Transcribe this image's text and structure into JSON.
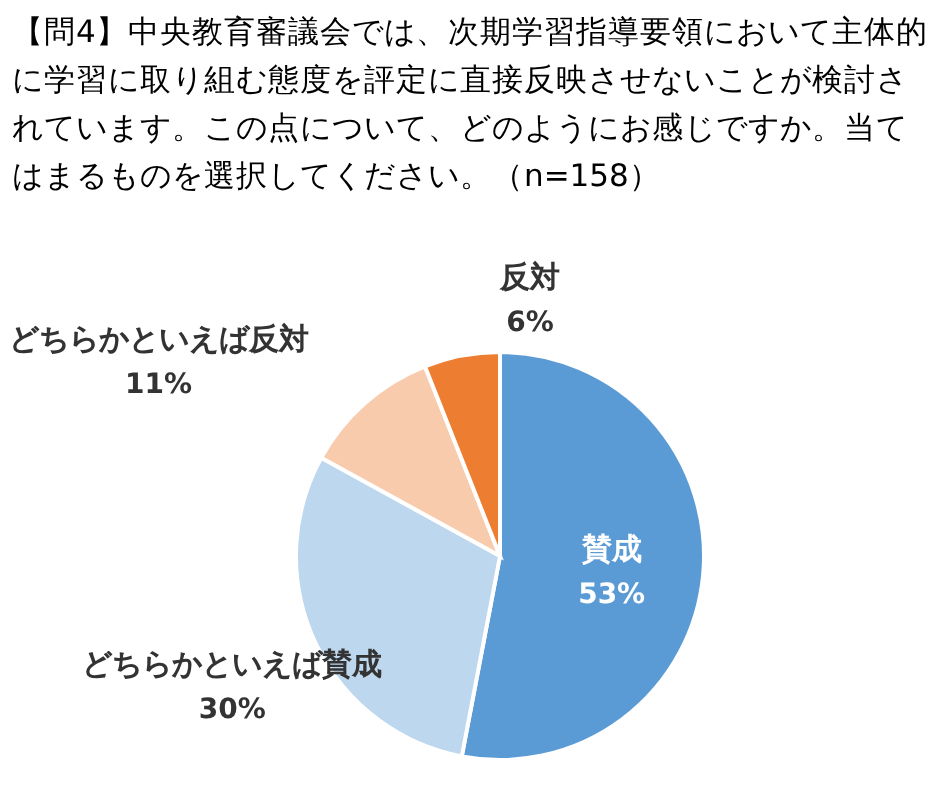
{
  "chart_data": {
    "type": "pie",
    "title": "【問4】中央教育審議会では、次期学習指導要領において主体的に学習に取り組む態度を評定に直接反映させないことが検討されています。この点について、どのようにお感じですか。当てはまるものを選択してください。（n=158）",
    "categories": [
      "賛成",
      "どちらかといえば賛成",
      "どちらかといえば反対",
      "反対"
    ],
    "values": [
      53,
      30,
      11,
      6
    ],
    "colors": [
      "#5b9bd5",
      "#bdd7ee",
      "#f8cbad",
      "#ed7d31"
    ],
    "value_labels": [
      "53%",
      "30%",
      "11%",
      "6%"
    ]
  }
}
